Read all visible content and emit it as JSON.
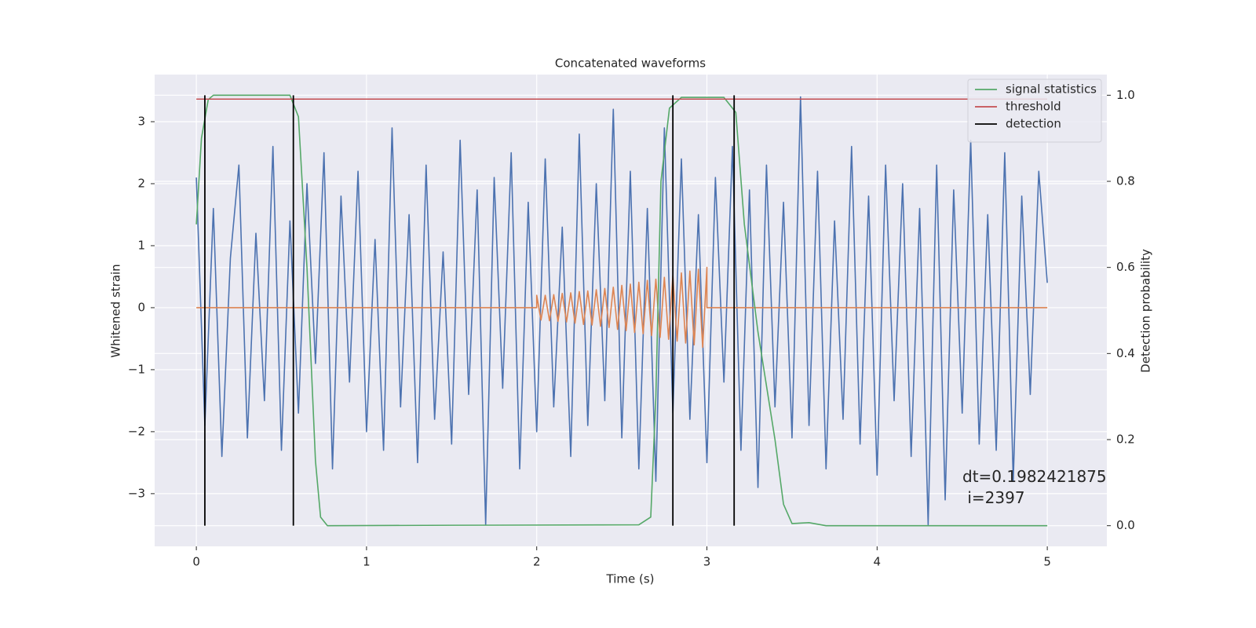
{
  "chart_data": {
    "type": "line",
    "title": "Concatenated waveforms",
    "xlabel": "Time (s)",
    "ylabel": "Whitened strain",
    "y2label": "Detection probability",
    "xlim": [
      -0.245,
      5.35
    ],
    "ylim": [
      -3.85,
      3.76
    ],
    "y2lim": [
      -0.048,
      1.048
    ],
    "xticks": [
      0,
      1,
      2,
      3,
      4,
      5
    ],
    "yticks": [
      {
        "value": -3,
        "label": "−3"
      },
      {
        "value": -2,
        "label": "−2"
      },
      {
        "value": -1,
        "label": "−1"
      },
      0,
      1,
      2,
      3
    ],
    "y2ticks": [
      {
        "value": 0,
        "label": "0.0"
      },
      0.2,
      0.4,
      0.6,
      0.8,
      {
        "value": 1,
        "label": "1.0"
      }
    ],
    "grid": true,
    "legend": "upper right",
    "series": [
      {
        "color": "#4c72b0",
        "x": [
          0,
          0.05,
          0.1,
          0.15,
          0.2,
          0.25,
          0.3,
          0.35,
          0.4,
          0.45,
          0.5,
          0.55,
          0.6,
          0.65,
          0.7,
          0.75,
          0.8,
          0.85,
          0.9,
          0.95,
          1,
          1.05,
          1.1,
          1.15,
          1.2,
          1.25,
          1.3,
          1.35,
          1.4,
          1.45,
          1.5,
          1.55,
          1.6,
          1.65,
          1.7,
          1.75,
          1.8,
          1.85,
          1.9,
          1.95,
          2,
          2.05,
          2.1,
          2.15,
          2.2,
          2.25,
          2.3,
          2.35,
          2.4,
          2.45,
          2.5,
          2.55,
          2.6,
          2.65,
          2.7,
          2.75,
          2.8,
          2.85,
          2.9,
          2.95,
          3,
          3.05,
          3.1,
          3.15,
          3.2,
          3.25,
          3.3,
          3.35,
          3.4,
          3.45,
          3.5,
          3.55,
          3.6,
          3.65,
          3.7,
          3.75,
          3.8,
          3.85,
          3.9,
          3.95,
          4,
          4.05,
          4.1,
          4.15,
          4.2,
          4.25,
          4.3,
          4.35,
          4.4,
          4.45,
          4.5,
          4.55,
          4.6,
          4.65,
          4.7,
          4.75,
          4.8,
          4.85,
          4.9,
          4.95,
          5
        ],
        "values": [
          2.1,
          -1.9,
          1.6,
          -2.4,
          0.8,
          2.3,
          -2.1,
          1.2,
          -1.5,
          2.6,
          -2.3,
          1.4,
          -1.7,
          2.0,
          -0.9,
          2.5,
          -2.6,
          1.8,
          -1.2,
          2.2,
          -2.0,
          1.1,
          -2.3,
          2.9,
          -1.6,
          1.5,
          -2.5,
          2.3,
          -1.8,
          0.9,
          -2.2,
          2.7,
          -1.4,
          1.9,
          -3.5,
          2.1,
          -1.3,
          2.5,
          -2.6,
          1.7,
          -2.0,
          2.4,
          -1.6,
          1.3,
          -2.4,
          2.8,
          -1.9,
          2.0,
          -1.5,
          3.2,
          -2.1,
          2.2,
          -2.6,
          1.6,
          -2.8,
          2.9,
          -1.7,
          2.4,
          -1.8,
          1.5,
          -2.5,
          2.1,
          -1.2,
          2.6,
          -2.3,
          1.9,
          -2.9,
          2.3,
          -1.6,
          1.7,
          -2.1,
          3.4,
          -1.9,
          2.2,
          -2.6,
          1.4,
          -1.8,
          2.6,
          -2.2,
          1.8,
          -2.7,
          2.3,
          -1.5,
          2.0,
          -2.4,
          1.6,
          -3.5,
          2.3,
          -3.1,
          1.9,
          -1.7,
          2.7,
          -2.2,
          1.5,
          -2.3,
          2.5,
          -2.8,
          1.8,
          -1.4,
          2.2,
          0.4
        ]
      },
      {
        "color": "#dd8452",
        "x": [
          0,
          2,
          2,
          2.025,
          2.05,
          2.075,
          2.1,
          2.125,
          2.15,
          2.175,
          2.2,
          2.225,
          2.25,
          2.275,
          2.3,
          2.325,
          2.35,
          2.375,
          2.4,
          2.425,
          2.45,
          2.475,
          2.5,
          2.525,
          2.55,
          2.575,
          2.6,
          2.625,
          2.65,
          2.675,
          2.7,
          2.725,
          2.75,
          2.775,
          2.8,
          2.825,
          2.85,
          2.875,
          2.9,
          2.925,
          2.95,
          2.975,
          3,
          3,
          5
        ],
        "values": [
          0,
          0,
          0.2,
          -0.2,
          0.2,
          -0.21,
          0.21,
          -0.22,
          0.23,
          -0.23,
          0.24,
          -0.25,
          0.26,
          -0.27,
          0.27,
          -0.28,
          0.29,
          -0.3,
          0.31,
          -0.32,
          0.33,
          -0.35,
          0.36,
          -0.37,
          0.38,
          -0.4,
          0.41,
          -0.42,
          0.44,
          -0.45,
          0.46,
          -0.48,
          0.49,
          -0.51,
          0.52,
          -0.54,
          0.56,
          -0.57,
          0.59,
          -0.6,
          0.62,
          -0.64,
          0.65,
          0,
          0
        ]
      },
      {
        "name": "signal statistics",
        "color": "#55a868",
        "axis": "y2",
        "x": [
          0,
          0.03,
          0.07,
          0.1,
          0.55,
          0.6,
          0.65,
          0.7,
          0.73,
          0.77,
          1.5,
          2.6,
          2.67,
          2.7,
          2.73,
          2.78,
          2.85,
          3.1,
          3.17,
          3.22,
          3.3,
          3.4,
          3.45,
          3.5,
          3.6,
          3.7,
          5
        ],
        "values": [
          0.7,
          0.9,
          0.99,
          1.0,
          1.0,
          0.95,
          0.6,
          0.15,
          0.02,
          0,
          0.001,
          0.002,
          0.02,
          0.3,
          0.8,
          0.97,
          0.995,
          0.995,
          0.96,
          0.7,
          0.45,
          0.2,
          0.05,
          0.005,
          0.007,
          0,
          0
        ]
      },
      {
        "name": "threshold",
        "color": "#c44e52",
        "axis": "y2",
        "x": [
          0,
          5
        ],
        "values": [
          0.991,
          0.991
        ]
      }
    ],
    "detections": {
      "name": "detection",
      "color": "#000000",
      "x": [
        0.05,
        0.57,
        2.8,
        3.16
      ]
    },
    "annotation": [
      "dt=0.1982421875",
      " i=2397"
    ]
  }
}
